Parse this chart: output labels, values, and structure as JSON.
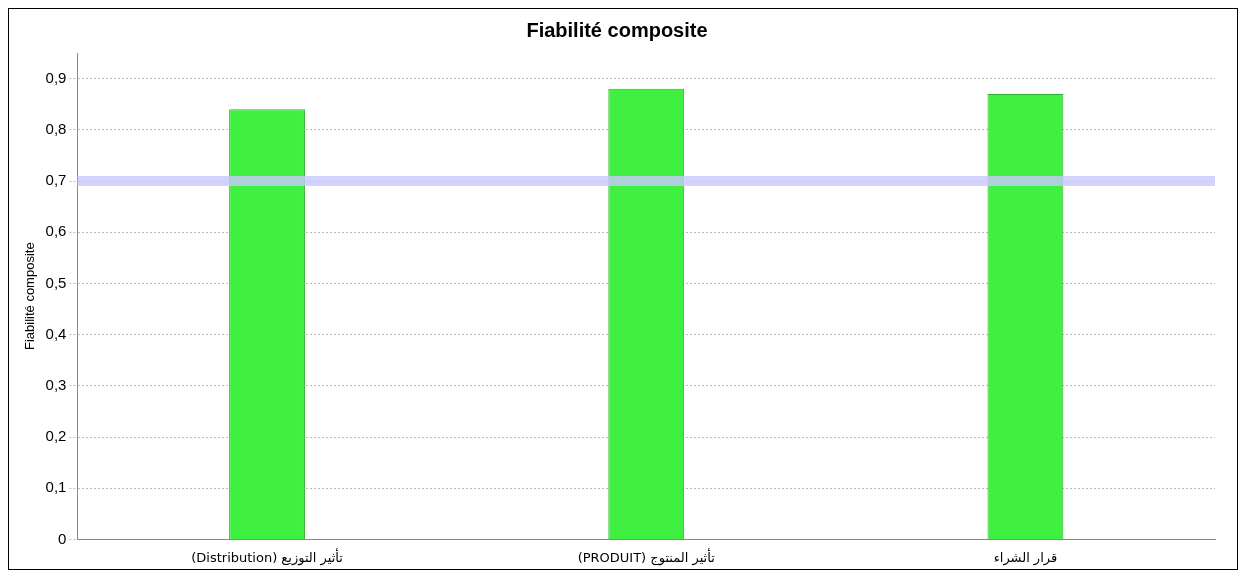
{
  "chart_data": {
    "type": "bar",
    "title": "Fiabilité composite",
    "ylabel": "Fiabilité composite",
    "categories": [
      "(Distribution) تأثير التوزيع",
      "(PRODUIT) تأثير المنتوج",
      "قرار الشراء"
    ],
    "values": [
      0.84,
      0.88,
      0.87
    ],
    "color": "#40f040",
    "ylim": [
      0,
      0.95
    ],
    "yticks": [
      {
        "value": 0,
        "label": "0"
      },
      {
        "value": 0.1,
        "label": "0,1"
      },
      {
        "value": 0.2,
        "label": "0,2"
      },
      {
        "value": 0.3,
        "label": "0,3"
      },
      {
        "value": 0.4,
        "label": "0,4"
      },
      {
        "value": 0.5,
        "label": "0,5"
      },
      {
        "value": 0.6,
        "label": "0,6"
      },
      {
        "value": 0.7,
        "label": "0,7"
      },
      {
        "value": 0.8,
        "label": "0,8"
      },
      {
        "value": 0.9,
        "label": "0,9"
      }
    ],
    "ref_lines": [
      {
        "axis": "y",
        "value": 0.7,
        "color": "#c8c8ff"
      }
    ],
    "grid": "y",
    "legend": false
  }
}
